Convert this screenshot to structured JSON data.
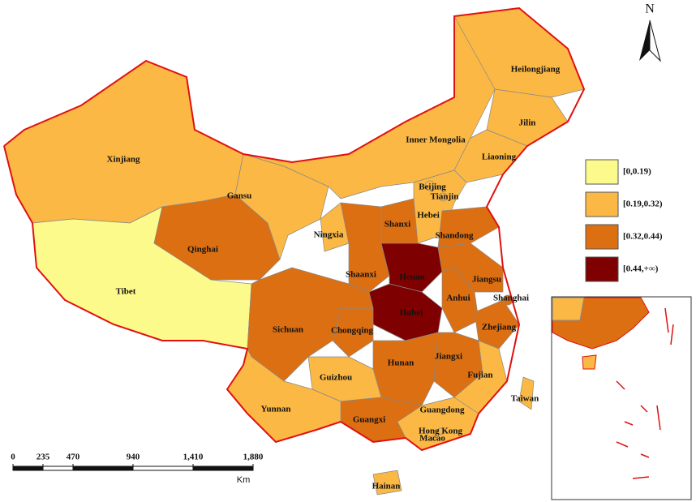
{
  "north": "N",
  "regions": [
    {
      "label": "Xinjiang",
      "color": "#fbb845"
    },
    {
      "label": "Tibet",
      "color": "#fdfa8c"
    },
    {
      "label": "Qinghai",
      "color": "#dc6f12"
    },
    {
      "label": "Gansu",
      "color": "#fbb845"
    },
    {
      "label": "Inner Mongolia",
      "color": "#fbb845"
    },
    {
      "label": "Heilongjiang",
      "color": "#fbb845"
    },
    {
      "label": "Jilin",
      "color": "#fbb845"
    },
    {
      "label": "Liaoning",
      "color": "#fbb845"
    },
    {
      "label": "Beijing",
      "color": "#fbb845"
    },
    {
      "label": "Tianjin",
      "color": "#fbb845"
    },
    {
      "label": "Hebei",
      "color": "#fbb845"
    },
    {
      "label": "Shanxi",
      "color": "#dc6f12"
    },
    {
      "label": "Ningxia",
      "color": "#fbb845"
    },
    {
      "label": "Shandong",
      "color": "#dc6f12"
    },
    {
      "label": "Shaanxi",
      "color": "#dc6f12"
    },
    {
      "label": "Henan",
      "color": "#7f0000"
    },
    {
      "label": "Jiangsu",
      "color": "#dc6f12"
    },
    {
      "label": "Anhui",
      "color": "#dc6f12"
    },
    {
      "label": "Shanghai",
      "color": "#dc6f12"
    },
    {
      "label": "Hubei",
      "color": "#7f0000"
    },
    {
      "label": "Chongqing",
      "color": "#dc6f12"
    },
    {
      "label": "Sichuan",
      "color": "#dc6f12"
    },
    {
      "label": "Zhejiang",
      "color": "#dc6f12"
    },
    {
      "label": "Jiangxi",
      "color": "#dc6f12"
    },
    {
      "label": "Hunan",
      "color": "#dc6f12"
    },
    {
      "label": "Guizhou",
      "color": "#fbb845"
    },
    {
      "label": "Fujian",
      "color": "#fbb845"
    },
    {
      "label": "Guangdong",
      "color": "#fbb845"
    },
    {
      "label": "Guangxi",
      "color": "#dc6f12"
    },
    {
      "label": "Yunnan",
      "color": "#fbb845"
    },
    {
      "label": "Taiwan",
      "color": "#fbb845"
    },
    {
      "label": "Hainan",
      "color": "#fbb845"
    },
    {
      "label": "Hong Kong",
      "color": "#fbb845"
    },
    {
      "label": "Macao",
      "color": "#fbb845"
    }
  ],
  "legend": [
    {
      "label": "[0,0.19)",
      "color": "#fdfa8c"
    },
    {
      "label": "[0.19,0.32)",
      "color": "#fbb845"
    },
    {
      "label": "[0.32,0.44)",
      "color": "#dc6f12"
    },
    {
      "label": "[0.44,+∞)",
      "color": "#7f0000"
    }
  ],
  "scale_bar": {
    "unit": "Km",
    "ticks": [
      0,
      235,
      470,
      940,
      {
        "value": 1410,
        "label": "1,410"
      },
      {
        "value": 1880,
        "label": "1,880"
      }
    ]
  }
}
